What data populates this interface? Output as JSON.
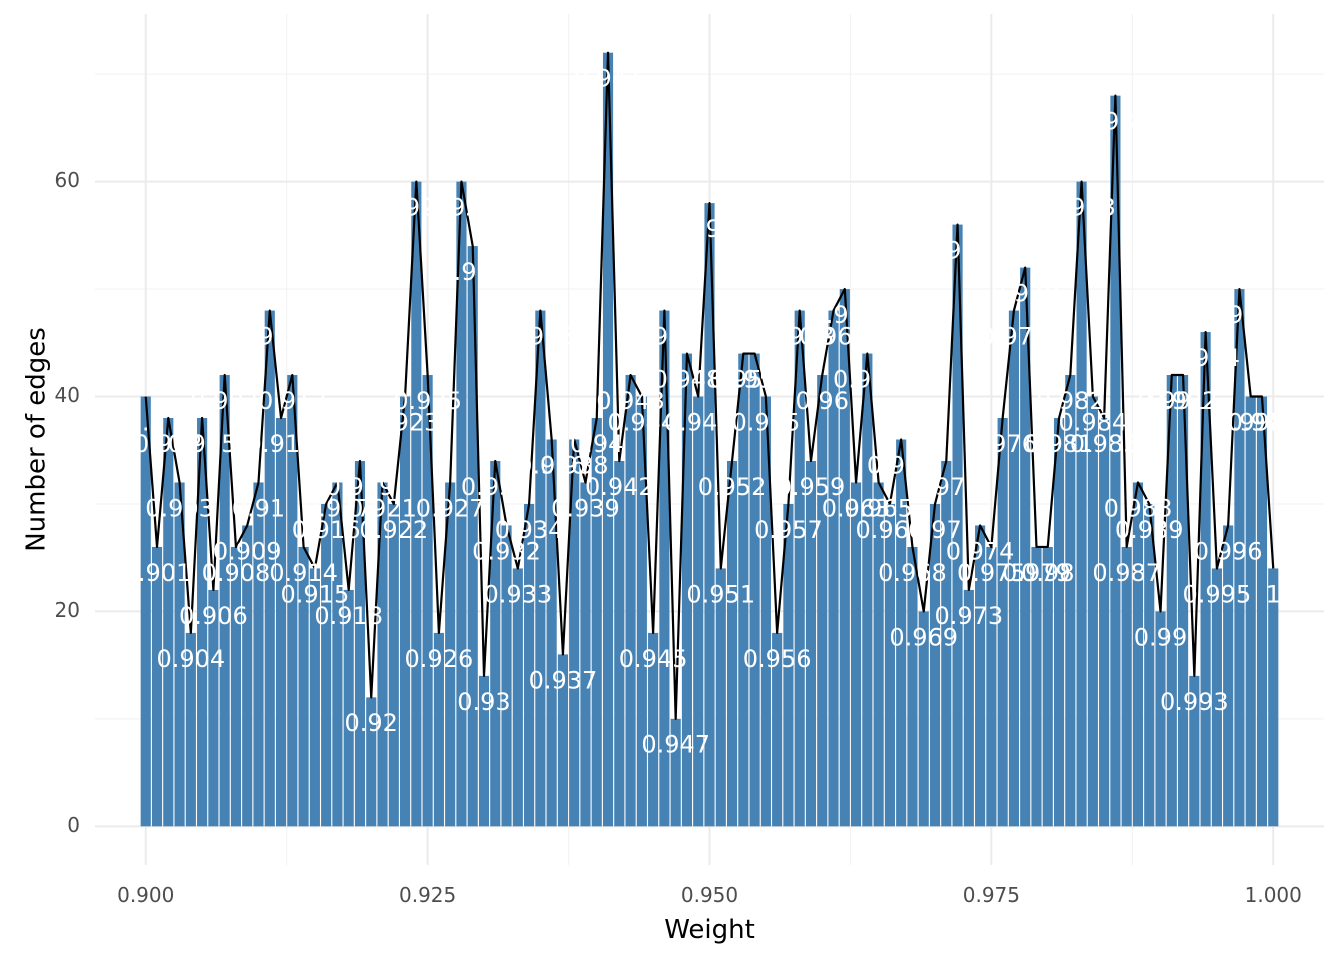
{
  "chart_data": {
    "type": "bar",
    "xlabel": "Weight",
    "ylabel": "Number of edges",
    "xlim": [
      0.8955,
      1.0045
    ],
    "ylim": [
      -3.6,
      75.6
    ],
    "x_ticks": [
      0.9,
      0.925,
      0.95,
      0.975,
      1.0
    ],
    "x_tick_labels": [
      "0.900",
      "0.925",
      "0.950",
      "0.975",
      "1.000"
    ],
    "y_ticks": [
      0,
      20,
      40,
      60
    ],
    "y_tick_labels": [
      "0",
      "20",
      "40",
      "60"
    ],
    "grid": true,
    "legend": "none",
    "colors": {
      "bar": "#4682b4",
      "line": "#000000",
      "label": "#ffffff"
    },
    "x": [
      0.9,
      0.901,
      0.902,
      0.903,
      0.904,
      0.905,
      0.906,
      0.907,
      0.908,
      0.909,
      0.91,
      0.911,
      0.912,
      0.913,
      0.914,
      0.915,
      0.916,
      0.917,
      0.918,
      0.919,
      0.92,
      0.921,
      0.922,
      0.923,
      0.924,
      0.925,
      0.926,
      0.927,
      0.928,
      0.929,
      0.93,
      0.931,
      0.932,
      0.933,
      0.934,
      0.935,
      0.936,
      0.937,
      0.938,
      0.939,
      0.94,
      0.941,
      0.942,
      0.943,
      0.944,
      0.945,
      0.946,
      0.947,
      0.948,
      0.949,
      0.95,
      0.951,
      0.952,
      0.953,
      0.954,
      0.955,
      0.956,
      0.957,
      0.958,
      0.959,
      0.96,
      0.961,
      0.962,
      0.963,
      0.964,
      0.965,
      0.966,
      0.967,
      0.968,
      0.969,
      0.97,
      0.971,
      0.972,
      0.973,
      0.974,
      0.975,
      0.976,
      0.977,
      0.978,
      0.979,
      0.98,
      0.981,
      0.982,
      0.983,
      0.984,
      0.985,
      0.986,
      0.987,
      0.988,
      0.989,
      0.99,
      0.991,
      0.992,
      0.993,
      0.994,
      0.995,
      0.996,
      0.997,
      0.998,
      0.999,
      1.0
    ],
    "values": [
      40,
      26,
      38,
      32,
      18,
      38,
      22,
      42,
      26,
      28,
      32,
      48,
      38,
      42,
      26,
      24,
      30,
      32,
      22,
      34,
      12,
      32,
      30,
      40,
      60,
      42,
      18,
      32,
      60,
      54,
      14,
      34,
      28,
      24,
      30,
      48,
      36,
      16,
      36,
      32,
      38,
      72,
      34,
      42,
      40,
      18,
      48,
      10,
      44,
      40,
      58,
      24,
      34,
      44,
      44,
      40,
      18,
      30,
      48,
      34,
      42,
      48,
      50,
      32,
      44,
      32,
      30,
      36,
      26,
      20,
      30,
      34,
      56,
      22,
      28,
      26,
      38,
      48,
      52,
      26,
      26,
      38,
      42,
      60,
      40,
      38,
      68,
      26,
      32,
      30,
      20,
      42,
      42,
      14,
      46,
      24,
      28,
      50,
      40,
      40,
      24
    ],
    "data_labels": [
      "0.9",
      "0.901",
      "0.902",
      "0.903",
      "0.904",
      "0.905",
      "0.906",
      "0.907",
      "0.908",
      "0.909",
      "0.91",
      "0.911",
      "0.912",
      "0.913",
      "0.914",
      "0.915",
      "0.916",
      "0.917",
      "0.918",
      "0.919",
      "0.92",
      "0.921",
      "0.922",
      "0.923",
      "0.924",
      "0.925",
      "0.926",
      "0.927",
      "0.928",
      "0.929",
      "0.93",
      "0.931",
      "0.932",
      "0.933",
      "0.934",
      "0.935",
      "0.936",
      "0.937",
      "0.938",
      "0.939",
      "0.94",
      "0.941",
      "0.942",
      "0.943",
      "0.944",
      "0.945",
      "0.946",
      "0.947",
      "0.948",
      "0.949",
      "0.95",
      "0.951",
      "0.952",
      "0.953",
      "0.954",
      "0.955",
      "0.956",
      "0.957",
      "0.958",
      "0.959",
      "0.96",
      "0.961",
      "0.962",
      "0.963",
      "0.964",
      "0.965",
      "0.966",
      "0.967",
      "0.968",
      "0.969",
      "0.97",
      "0.971",
      "0.972",
      "0.973",
      "0.974",
      "0.975",
      "0.976",
      "0.977",
      "0.978",
      "0.979",
      "0.98",
      "0.981",
      "0.982",
      "0.983",
      "0.984",
      "0.985",
      "0.986",
      "0.987",
      "0.988",
      "0.989",
      "0.99",
      "0.991",
      "0.992",
      "0.993",
      "0.994",
      "0.995",
      "0.996",
      "0.997",
      "0.998",
      "0.999",
      "1"
    ]
  }
}
